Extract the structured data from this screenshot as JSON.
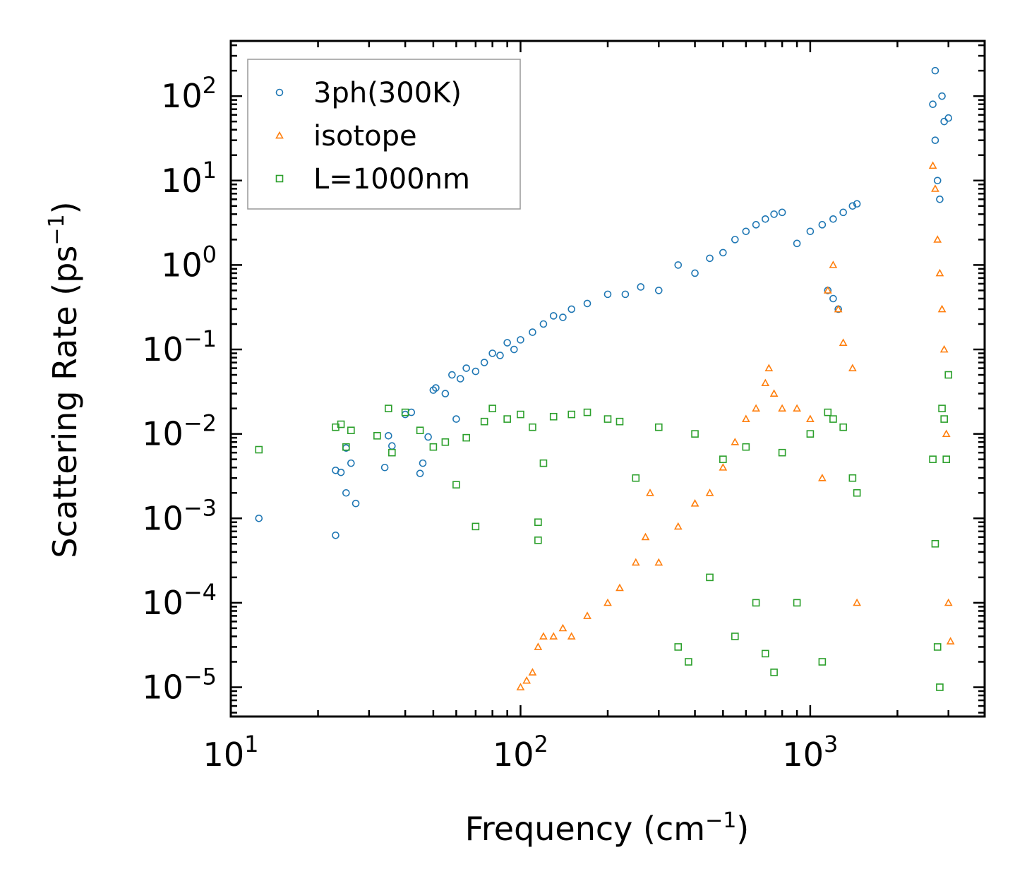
{
  "chart_data": {
    "type": "scatter",
    "xscale": "log",
    "yscale": "log",
    "xlim": [
      10,
      4000
    ],
    "ylim": [
      4.5e-06,
      450
    ],
    "xlabel": "Frequency (cm",
    "xlabel_sup": "−1",
    "xlabel_end": ")",
    "ylabel": "Scattering Rate (ps",
    "ylabel_sup": "−1",
    "ylabel_end": ")",
    "x_ticks": [
      {
        "value": 10,
        "base": "10",
        "exp": "1"
      },
      {
        "value": 100,
        "base": "10",
        "exp": "2"
      },
      {
        "value": 1000,
        "base": "10",
        "exp": "3"
      }
    ],
    "y_ticks": [
      {
        "value": 1e-05,
        "base": "10",
        "exp": "−5"
      },
      {
        "value": 0.0001,
        "base": "10",
        "exp": "−4"
      },
      {
        "value": 0.001,
        "base": "10",
        "exp": "−3"
      },
      {
        "value": 0.01,
        "base": "10",
        "exp": "−2"
      },
      {
        "value": 0.1,
        "base": "10",
        "exp": "−1"
      },
      {
        "value": 1,
        "base": "10",
        "exp": "0"
      },
      {
        "value": 10,
        "base": "10",
        "exp": "1"
      },
      {
        "value": 100,
        "base": "10",
        "exp": "2"
      }
    ],
    "grid": false,
    "legend_position": "top-left",
    "series": [
      {
        "name": "3ph(300K)",
        "marker": "circle",
        "color": "#1f77b4",
        "points": [
          [
            12.5,
            0.001
          ],
          [
            23,
            0.00063
          ],
          [
            23,
            0.0037
          ],
          [
            24,
            0.0035
          ],
          [
            25,
            0.002
          ],
          [
            25,
            0.0068
          ],
          [
            26,
            0.0045
          ],
          [
            27,
            0.0015
          ],
          [
            34,
            0.004
          ],
          [
            35,
            0.0095
          ],
          [
            36,
            0.0072
          ],
          [
            40,
            0.017
          ],
          [
            42,
            0.018
          ],
          [
            45,
            0.0034
          ],
          [
            46,
            0.0045
          ],
          [
            48,
            0.0092
          ],
          [
            50,
            0.033
          ],
          [
            51,
            0.035
          ],
          [
            55,
            0.03
          ],
          [
            58,
            0.05
          ],
          [
            60,
            0.015
          ],
          [
            62,
            0.045
          ],
          [
            65,
            0.06
          ],
          [
            70,
            0.055
          ],
          [
            75,
            0.07
          ],
          [
            80,
            0.09
          ],
          [
            85,
            0.085
          ],
          [
            90,
            0.12
          ],
          [
            95,
            0.1
          ],
          [
            100,
            0.13
          ],
          [
            110,
            0.16
          ],
          [
            120,
            0.2
          ],
          [
            130,
            0.25
          ],
          [
            140,
            0.24
          ],
          [
            150,
            0.3
          ],
          [
            170,
            0.35
          ],
          [
            200,
            0.45
          ],
          [
            230,
            0.45
          ],
          [
            260,
            0.55
          ],
          [
            300,
            0.5
          ],
          [
            350,
            1.0
          ],
          [
            400,
            0.8
          ],
          [
            450,
            1.2
          ],
          [
            500,
            1.4
          ],
          [
            550,
            2.0
          ],
          [
            600,
            2.5
          ],
          [
            650,
            3.0
          ],
          [
            700,
            3.5
          ],
          [
            750,
            4.0
          ],
          [
            800,
            4.2
          ],
          [
            900,
            1.8
          ],
          [
            1000,
            2.5
          ],
          [
            1100,
            3.0
          ],
          [
            1200,
            3.5
          ],
          [
            1300,
            4.2
          ],
          [
            1400,
            5.0
          ],
          [
            1450,
            5.3
          ],
          [
            1150,
            0.5
          ],
          [
            1200,
            0.4
          ],
          [
            1250,
            0.3
          ],
          [
            2700,
            200
          ],
          [
            2650,
            80
          ],
          [
            2700,
            30
          ],
          [
            2750,
            10
          ],
          [
            2800,
            6
          ],
          [
            2850,
            100
          ],
          [
            2900,
            50
          ],
          [
            3000,
            55
          ]
        ]
      },
      {
        "name": "isotope",
        "marker": "triangle",
        "color": "#ff7f0e",
        "points": [
          [
            100,
            1e-05
          ],
          [
            105,
            1.2e-05
          ],
          [
            110,
            1.5e-05
          ],
          [
            115,
            3e-05
          ],
          [
            120,
            4e-05
          ],
          [
            130,
            4e-05
          ],
          [
            140,
            5e-05
          ],
          [
            150,
            4e-05
          ],
          [
            170,
            7e-05
          ],
          [
            200,
            0.0001
          ],
          [
            220,
            0.00015
          ],
          [
            250,
            0.0003
          ],
          [
            270,
            0.0006
          ],
          [
            280,
            0.002
          ],
          [
            300,
            0.0003
          ],
          [
            350,
            0.0008
          ],
          [
            400,
            0.0015
          ],
          [
            450,
            0.002
          ],
          [
            500,
            0.004
          ],
          [
            550,
            0.008
          ],
          [
            600,
            0.015
          ],
          [
            650,
            0.02
          ],
          [
            700,
            0.04
          ],
          [
            720,
            0.06
          ],
          [
            750,
            0.03
          ],
          [
            800,
            0.02
          ],
          [
            900,
            0.02
          ],
          [
            1000,
            0.015
          ],
          [
            1100,
            0.003
          ],
          [
            1150,
            0.5
          ],
          [
            1200,
            1.0
          ],
          [
            1250,
            0.3
          ],
          [
            1300,
            0.12
          ],
          [
            1400,
            0.06
          ],
          [
            1450,
            0.0001
          ],
          [
            2650,
            15
          ],
          [
            2700,
            8
          ],
          [
            2750,
            2
          ],
          [
            2800,
            0.8
          ],
          [
            2850,
            0.3
          ],
          [
            2900,
            0.1
          ],
          [
            2950,
            0.01
          ],
          [
            3000,
            0.0001
          ],
          [
            3050,
            3.5e-05
          ]
        ]
      },
      {
        "name": "L=1000nm",
        "marker": "square",
        "color": "#2ca02c",
        "points": [
          [
            12.5,
            0.0065
          ],
          [
            23,
            0.012
          ],
          [
            24,
            0.013
          ],
          [
            25,
            0.007
          ],
          [
            26,
            0.011
          ],
          [
            32,
            0.0095
          ],
          [
            35,
            0.02
          ],
          [
            36,
            0.006
          ],
          [
            40,
            0.018
          ],
          [
            45,
            0.011
          ],
          [
            50,
            0.007
          ],
          [
            55,
            0.008
          ],
          [
            60,
            0.0025
          ],
          [
            65,
            0.009
          ],
          [
            70,
            0.0008
          ],
          [
            75,
            0.014
          ],
          [
            80,
            0.02
          ],
          [
            90,
            0.015
          ],
          [
            100,
            0.017
          ],
          [
            110,
            0.012
          ],
          [
            115,
            0.0009
          ],
          [
            115,
            0.00055
          ],
          [
            120,
            0.0045
          ],
          [
            130,
            0.016
          ],
          [
            150,
            0.017
          ],
          [
            170,
            0.018
          ],
          [
            200,
            0.015
          ],
          [
            220,
            0.014
          ],
          [
            250,
            0.003
          ],
          [
            300,
            0.012
          ],
          [
            350,
            3e-05
          ],
          [
            380,
            2e-05
          ],
          [
            400,
            0.01
          ],
          [
            450,
            0.0002
          ],
          [
            500,
            0.005
          ],
          [
            550,
            4e-05
          ],
          [
            600,
            0.007
          ],
          [
            650,
            0.0001
          ],
          [
            700,
            2.5e-05
          ],
          [
            750,
            1.5e-05
          ],
          [
            800,
            0.006
          ],
          [
            900,
            0.0001
          ],
          [
            1000,
            0.01
          ],
          [
            1100,
            2e-05
          ],
          [
            1150,
            0.018
          ],
          [
            1200,
            0.015
          ],
          [
            1300,
            0.012
          ],
          [
            1400,
            0.003
          ],
          [
            1450,
            0.002
          ],
          [
            2650,
            0.005
          ],
          [
            2700,
            0.0005
          ],
          [
            2750,
            3e-05
          ],
          [
            2800,
            1e-05
          ],
          [
            2850,
            0.02
          ],
          [
            2900,
            0.015
          ],
          [
            2950,
            0.005
          ],
          [
            3000,
            0.05
          ]
        ]
      }
    ]
  }
}
